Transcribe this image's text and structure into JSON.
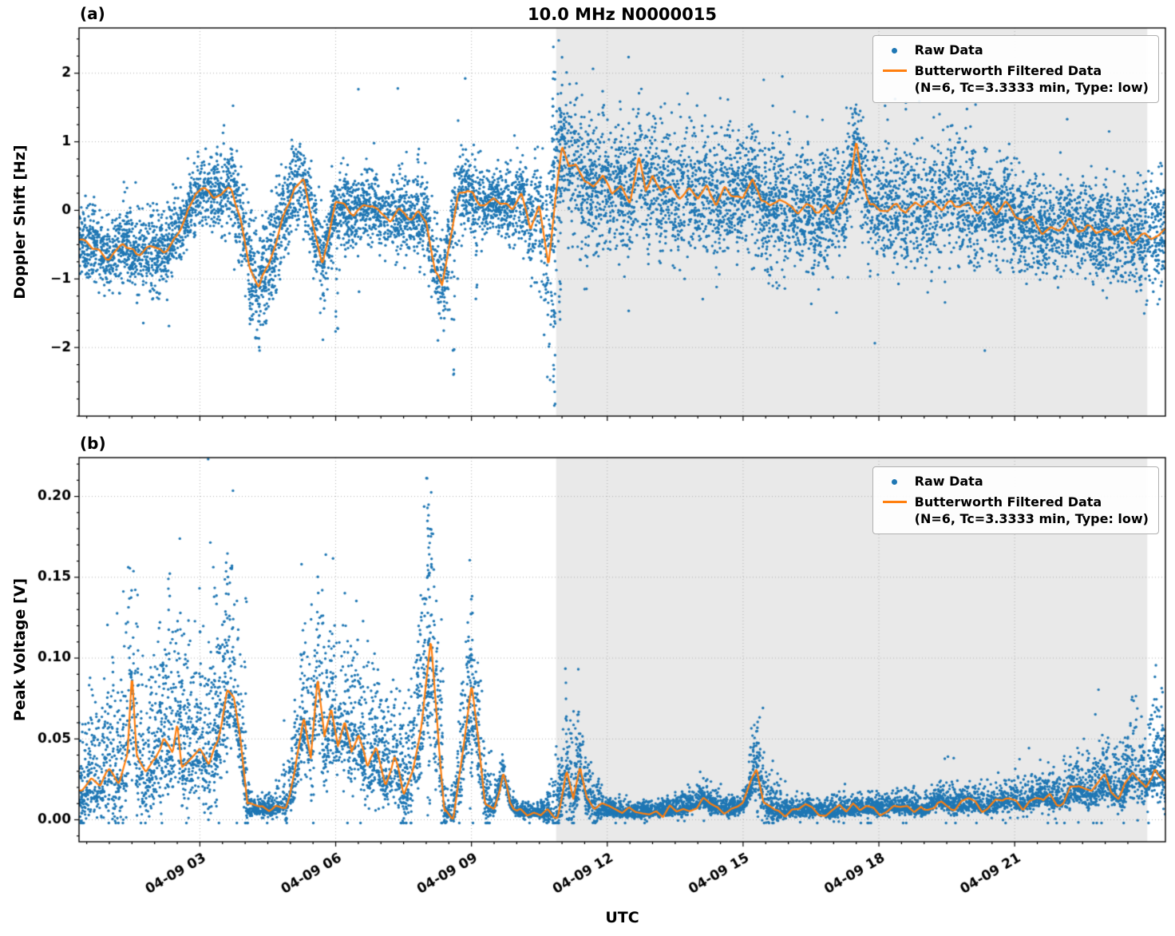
{
  "title": "10.0 MHz N0000015",
  "xlabel": "UTC",
  "colors": {
    "raw": "#1f77b4",
    "filtered": "#ff7f0e",
    "shade": "#e9e9e9",
    "grid": "#b0b0b0",
    "spine": "#000000"
  },
  "legend": {
    "raw": "Raw Data",
    "filtered": "Butterworth Filtered Data",
    "filtered_params": "(N=6, Tc=3.3333 min, Type: low)"
  },
  "x_ticks": [
    {
      "t": 3,
      "label": "04-09 03"
    },
    {
      "t": 6,
      "label": "04-09 06"
    },
    {
      "t": 9,
      "label": "04-09 09"
    },
    {
      "t": 12,
      "label": "04-09 12"
    },
    {
      "t": 15,
      "label": "04-09 15"
    },
    {
      "t": 18,
      "label": "04-09 18"
    },
    {
      "t": 21,
      "label": "04-09 21"
    }
  ],
  "x_minor_step": 0.5,
  "chart_data": [
    {
      "type": "scatter",
      "panel_label": "(a)",
      "ylabel": "Doppler Shift [Hz]",
      "xlim": [
        0.33,
        24.33
      ],
      "ylim": [
        -3.0,
        2.66
      ],
      "y_minor_step": 0.25,
      "grid": true,
      "shaded_region": [
        10.87,
        23.93
      ],
      "y_ticks": [
        {
          "v": -2,
          "label": "−2"
        },
        {
          "v": -1,
          "label": "−1"
        },
        {
          "v": 0,
          "label": "0"
        },
        {
          "v": 1,
          "label": "1"
        },
        {
          "v": 2,
          "label": "2"
        }
      ],
      "series": [
        {
          "name": "Raw Data",
          "type": "scatter",
          "seed": 42,
          "n_points": 9500,
          "outlier_frac": 0.02,
          "outlier_scale": 2.2,
          "up_factor": 1.0,
          "down_factor": 1.0,
          "clamp_min": -2.95,
          "spread_t": [
            0.4,
            2,
            3,
            4,
            4.5,
            5,
            5.5,
            6,
            7,
            8,
            8.6,
            9.5,
            10.3,
            10.8,
            11.2,
            12,
            13,
            14,
            15,
            16,
            17,
            18,
            19,
            20,
            21,
            22,
            23,
            24.3
          ],
          "spread_v": [
            0.28,
            0.3,
            0.25,
            0.35,
            0.4,
            0.3,
            0.35,
            0.28,
            0.25,
            0.35,
            0.35,
            0.2,
            0.35,
            0.7,
            0.5,
            0.45,
            0.45,
            0.45,
            0.4,
            0.45,
            0.45,
            0.4,
            0.45,
            0.4,
            0.35,
            0.35,
            0.35,
            0.4
          ],
          "streaks": [
            {
              "t": 10.82,
              "y0": -2.9,
              "y1": 2.4,
              "n": 34
            },
            {
              "t": 10.95,
              "y0": -1.6,
              "y1": 1.8,
              "n": 16
            },
            {
              "t": 8.6,
              "y0": -2.45,
              "y1": -0.6,
              "n": 10
            },
            {
              "t": 6.02,
              "y0": -2.0,
              "y1": -0.5,
              "n": 9
            },
            {
              "t": 9.1,
              "y0": -1.6,
              "y1": -0.3,
              "n": 6
            },
            {
              "t": 4.32,
              "y0": -2.05,
              "y1": -0.9,
              "n": 8
            },
            {
              "t": 17.5,
              "y0": 0.2,
              "y1": 1.7,
              "n": 8
            },
            {
              "t": 23.9,
              "y0": -1.5,
              "y1": 0.5,
              "n": 8
            }
          ]
        },
        {
          "name": "Butterworth Filtered Data (N=6, Tc=3.3333 min, Type: low)",
          "type": "line",
          "seed": 5,
          "width": 2.2,
          "jitter": 0.06,
          "t": [
            0.4,
            0.7,
            1.0,
            1.3,
            1.6,
            1.9,
            2.2,
            2.5,
            2.7,
            2.9,
            3.1,
            3.3,
            3.5,
            3.7,
            3.9,
            4.1,
            4.3,
            4.5,
            4.7,
            4.9,
            5.1,
            5.3,
            5.5,
            5.7,
            5.85,
            6.0,
            6.2,
            6.4,
            6.6,
            6.8,
            7.0,
            7.2,
            7.4,
            7.6,
            7.8,
            8.0,
            8.2,
            8.35,
            8.5,
            8.7,
            8.9,
            9.1,
            9.3,
            9.5,
            9.7,
            9.9,
            10.1,
            10.3,
            10.5,
            10.7,
            10.85,
            11.0,
            11.15,
            11.3,
            11.5,
            11.7,
            11.9,
            12.1,
            12.3,
            12.5,
            12.7,
            12.85,
            13.0,
            13.2,
            13.4,
            13.6,
            13.8,
            14.0,
            14.2,
            14.4,
            14.6,
            14.8,
            15.0,
            15.2,
            15.4,
            15.6,
            15.8,
            16.0,
            16.2,
            16.4,
            16.6,
            16.8,
            17.0,
            17.2,
            17.4,
            17.5,
            17.6,
            17.8,
            18.0,
            18.2,
            18.4,
            18.6,
            18.8,
            19.0,
            19.2,
            19.4,
            19.6,
            19.8,
            20.0,
            20.2,
            20.4,
            20.6,
            20.8,
            21.0,
            21.2,
            21.4,
            21.6,
            21.8,
            22.0,
            22.2,
            22.4,
            22.6,
            22.8,
            23.0,
            23.2,
            23.4,
            23.6,
            23.8,
            24.0,
            24.3
          ],
          "y": [
            -0.45,
            -0.55,
            -0.7,
            -0.5,
            -0.65,
            -0.55,
            -0.6,
            -0.35,
            -0.1,
            0.25,
            0.3,
            0.2,
            0.3,
            0.3,
            -0.1,
            -0.8,
            -1.15,
            -0.8,
            -0.4,
            0.0,
            0.35,
            0.4,
            -0.2,
            -0.75,
            -0.4,
            0.1,
            0.05,
            -0.1,
            0.05,
            0.1,
            -0.05,
            -0.15,
            0.0,
            -0.1,
            -0.05,
            -0.15,
            -0.9,
            -1.1,
            -0.5,
            0.2,
            0.3,
            0.15,
            0.1,
            0.15,
            0.1,
            0.05,
            0.3,
            -0.3,
            0.1,
            -0.85,
            0.2,
            0.9,
            0.6,
            0.7,
            0.4,
            0.3,
            0.5,
            0.2,
            0.35,
            0.15,
            0.8,
            0.3,
            0.55,
            0.25,
            0.4,
            0.2,
            0.3,
            0.15,
            0.4,
            0.1,
            0.3,
            0.2,
            0.15,
            0.5,
            0.1,
            0.05,
            0.2,
            0.1,
            0.0,
            0.1,
            -0.05,
            0.05,
            0.0,
            0.1,
            0.55,
            1.0,
            0.5,
            0.1,
            0.05,
            0.0,
            0.1,
            -0.05,
            0.15,
            0.05,
            0.1,
            0.0,
            0.15,
            0.05,
            0.1,
            0.0,
            0.15,
            -0.05,
            0.1,
            -0.1,
            -0.2,
            -0.1,
            -0.3,
            -0.2,
            -0.25,
            -0.15,
            -0.3,
            -0.2,
            -0.35,
            -0.25,
            -0.4,
            -0.3,
            -0.45,
            -0.35,
            -0.4,
            -0.3
          ]
        }
      ]
    },
    {
      "type": "scatter",
      "panel_label": "(b)",
      "ylabel": "Peak Voltage [V]",
      "xlim": [
        0.33,
        24.33
      ],
      "ylim": [
        -0.0136,
        0.224
      ],
      "y_minor_step": 0.01,
      "grid": true,
      "shaded_region": [
        10.87,
        23.93
      ],
      "y_ticks": [
        {
          "v": 0.0,
          "label": "0.00"
        },
        {
          "v": 0.05,
          "label": "0.05"
        },
        {
          "v": 0.1,
          "label": "0.10"
        },
        {
          "v": 0.15,
          "label": "0.15"
        },
        {
          "v": 0.2,
          "label": "0.20"
        }
      ],
      "series": [
        {
          "name": "Raw Data",
          "type": "scatter",
          "seed": 7,
          "n_points": 9500,
          "outlier_frac": 0.015,
          "outlier_scale": 2.4,
          "up_factor": 1.1,
          "down_factor": 0.45,
          "clamp_min": -0.002,
          "spread_t": [
            0.4,
            1,
            1.5,
            2,
            2.5,
            3,
            3.6,
            4.2,
            4.8,
            5.3,
            5.8,
            6.3,
            6.9,
            7.5,
            8.1,
            8.5,
            9.0,
            9.5,
            10,
            10.5,
            11.1,
            11.5,
            12,
            13,
            14,
            15,
            15.3,
            16,
            17,
            18,
            19,
            20,
            21,
            22,
            23,
            24.3
          ],
          "spread_v": [
            0.02,
            0.025,
            0.04,
            0.03,
            0.035,
            0.03,
            0.04,
            0.004,
            0.006,
            0.03,
            0.035,
            0.03,
            0.025,
            0.02,
            0.05,
            0.003,
            0.035,
            0.006,
            0.003,
            0.002,
            0.02,
            0.015,
            0.004,
            0.003,
            0.005,
            0.004,
            0.015,
            0.004,
            0.004,
            0.004,
            0.005,
            0.005,
            0.006,
            0.008,
            0.012,
            0.02
          ],
          "streaks": [
            {
              "t": 8.05,
              "y0": 0.0,
              "y1": 0.212,
              "n": 34
            },
            {
              "t": 8.2,
              "y0": 0.0,
              "y1": 0.16,
              "n": 14
            },
            {
              "t": 8.35,
              "y0": 0.0,
              "y1": 0.13,
              "n": 12
            },
            {
              "t": 1.5,
              "y0": 0.0,
              "y1": 0.128,
              "n": 10
            },
            {
              "t": 2.15,
              "y0": 0.0,
              "y1": 0.138,
              "n": 10
            },
            {
              "t": 3.35,
              "y0": 0.0,
              "y1": 0.148,
              "n": 12
            },
            {
              "t": 4.0,
              "y0": 0.0,
              "y1": 0.148,
              "n": 10
            },
            {
              "t": 9.0,
              "y0": 0.0,
              "y1": 0.131,
              "n": 10
            },
            {
              "t": 11.1,
              "y0": 0.0,
              "y1": 0.105,
              "n": 10
            },
            {
              "t": 11.35,
              "y0": 0.0,
              "y1": 0.1,
              "n": 8
            },
            {
              "t": 15.3,
              "y0": 0.0,
              "y1": 0.062,
              "n": 8
            },
            {
              "t": 23.6,
              "y0": 0.0,
              "y1": 0.05,
              "n": 6
            },
            {
              "t": 24.25,
              "y0": 0.0,
              "y1": 0.09,
              "n": 10
            }
          ]
        },
        {
          "name": "Butterworth Filtered Data (N=6, Tc=3.3333 min, Type: low)",
          "type": "line",
          "seed": 11,
          "width": 2.2,
          "jitter": 0.004,
          "t": [
            0.4,
            0.6,
            0.8,
            1.0,
            1.2,
            1.4,
            1.5,
            1.6,
            1.8,
            2.0,
            2.2,
            2.4,
            2.5,
            2.6,
            2.8,
            3.0,
            3.2,
            3.4,
            3.6,
            3.75,
            3.9,
            4.05,
            4.3,
            4.6,
            4.9,
            5.1,
            5.3,
            5.45,
            5.6,
            5.75,
            5.9,
            6.05,
            6.2,
            6.35,
            6.5,
            6.7,
            6.9,
            7.1,
            7.3,
            7.5,
            7.7,
            7.9,
            8.1,
            8.25,
            8.4,
            8.6,
            8.8,
            9.0,
            9.15,
            9.3,
            9.5,
            9.7,
            9.85,
            10.0,
            10.3,
            10.6,
            10.9,
            11.1,
            11.25,
            11.4,
            11.55,
            11.7,
            12.0,
            12.3,
            12.6,
            13.0,
            13.4,
            13.8,
            14.1,
            14.4,
            14.7,
            15.0,
            15.3,
            15.45,
            15.7,
            16.0,
            16.5,
            17.0,
            17.5,
            18.0,
            18.5,
            19.0,
            19.3,
            19.6,
            20.0,
            20.4,
            20.8,
            21.2,
            21.6,
            22.0,
            22.4,
            22.7,
            23.0,
            23.3,
            23.6,
            23.9,
            24.1,
            24.3
          ],
          "y": [
            0.018,
            0.025,
            0.02,
            0.03,
            0.025,
            0.04,
            0.09,
            0.04,
            0.03,
            0.035,
            0.05,
            0.04,
            0.06,
            0.035,
            0.04,
            0.045,
            0.035,
            0.05,
            0.08,
            0.075,
            0.05,
            0.008,
            0.006,
            0.007,
            0.01,
            0.03,
            0.06,
            0.04,
            0.09,
            0.05,
            0.07,
            0.045,
            0.06,
            0.04,
            0.055,
            0.03,
            0.045,
            0.025,
            0.04,
            0.015,
            0.03,
            0.06,
            0.11,
            0.06,
            0.005,
            0.004,
            0.04,
            0.08,
            0.05,
            0.01,
            0.008,
            0.03,
            0.01,
            0.005,
            0.004,
            0.004,
            0.004,
            0.03,
            0.012,
            0.035,
            0.015,
            0.008,
            0.006,
            0.005,
            0.004,
            0.005,
            0.006,
            0.008,
            0.012,
            0.008,
            0.006,
            0.008,
            0.03,
            0.01,
            0.006,
            0.005,
            0.006,
            0.005,
            0.007,
            0.006,
            0.008,
            0.006,
            0.012,
            0.008,
            0.01,
            0.008,
            0.012,
            0.01,
            0.015,
            0.012,
            0.02,
            0.015,
            0.025,
            0.015,
            0.03,
            0.02,
            0.035,
            0.025
          ]
        }
      ]
    }
  ]
}
